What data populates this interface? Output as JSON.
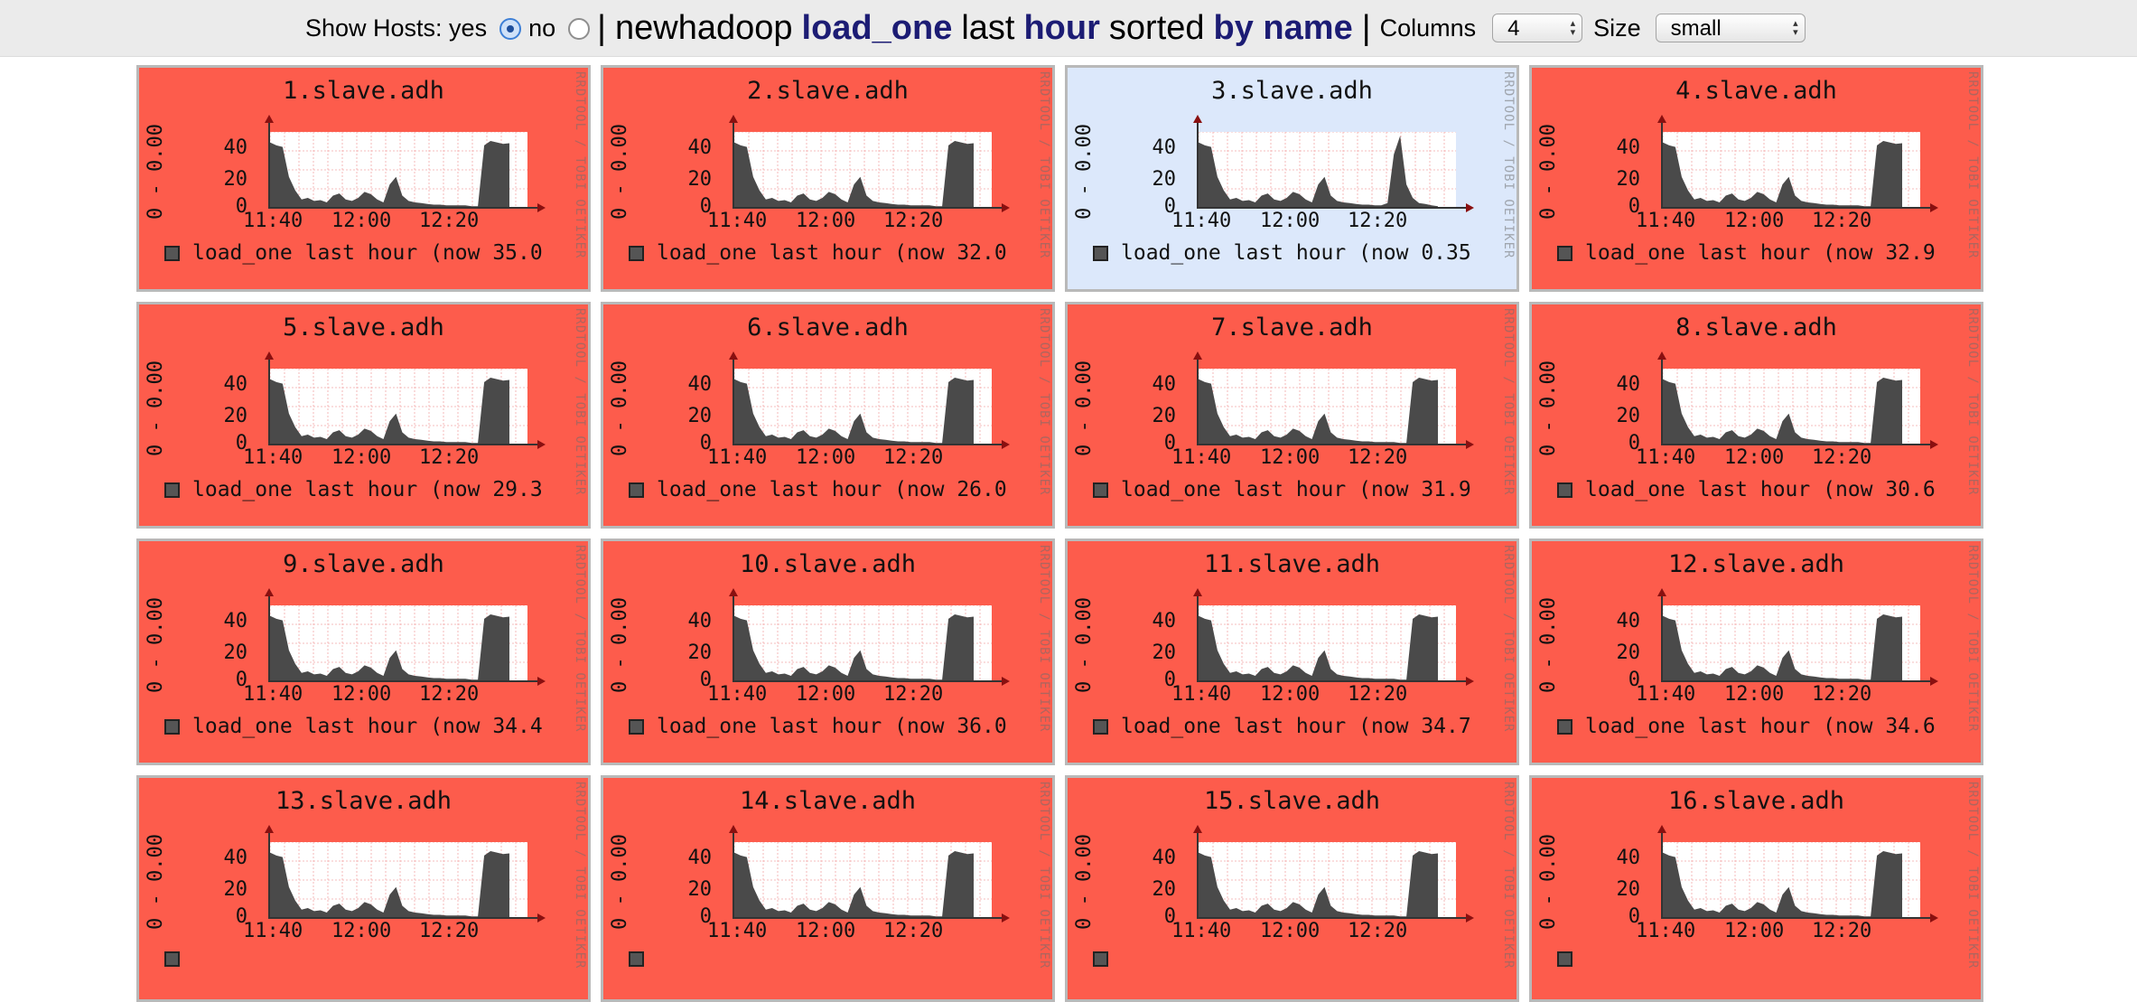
{
  "header": {
    "show_hosts_label": "Show Hosts: yes",
    "no_label": "no",
    "separator": "|",
    "cluster": "newhadoop",
    "metric": "load_one",
    "last_label": "last",
    "range": "hour",
    "sorted_label": "sorted",
    "sort_by": "by name",
    "separator2": "|",
    "columns_label": "Columns",
    "columns_value": "4",
    "size_label": "Size",
    "size_value": "small",
    "show_hosts_selected": "yes"
  },
  "graph_common": {
    "y_range_label": "0 - 0.00",
    "y_ticks": [
      "40",
      "20",
      "0"
    ],
    "x_ticks": [
      "11:40",
      "12:00",
      "12:20"
    ],
    "watermark": "RRDTOOL / TOBI OETIKER",
    "colors": {
      "alert_bg": "#fd5c4c",
      "ok_bg": "#dce8fb",
      "area": "#4a4a4a",
      "grid": "#f3a8a8"
    }
  },
  "hosts": [
    {
      "title": "1.slave.adh",
      "legend": "load_one last hour (now 35.0",
      "now": 35.0,
      "status": "alert"
    },
    {
      "title": "2.slave.adh",
      "legend": "load_one last hour (now 32.0",
      "now": 32.0,
      "status": "alert"
    },
    {
      "title": "3.slave.adh",
      "legend": "load_one last hour (now 0.35",
      "now": 0.35,
      "status": "ok"
    },
    {
      "title": "4.slave.adh",
      "legend": "load_one last hour (now 32.9",
      "now": 32.9,
      "status": "alert"
    },
    {
      "title": "5.slave.adh",
      "legend": "load_one last hour (now 29.3",
      "now": 29.3,
      "status": "alert"
    },
    {
      "title": "6.slave.adh",
      "legend": "load_one last hour (now 26.0",
      "now": 26.0,
      "status": "alert"
    },
    {
      "title": "7.slave.adh",
      "legend": "load_one last hour (now 31.9",
      "now": 31.9,
      "status": "alert"
    },
    {
      "title": "8.slave.adh",
      "legend": "load_one last hour (now 30.6",
      "now": 30.6,
      "status": "alert"
    },
    {
      "title": "9.slave.adh",
      "legend": "load_one last hour (now 34.4",
      "now": 34.4,
      "status": "alert"
    },
    {
      "title": "10.slave.adh",
      "legend": "load_one last hour (now 36.0",
      "now": 36.0,
      "status": "alert"
    },
    {
      "title": "11.slave.adh",
      "legend": "load_one last hour (now 34.7",
      "now": 34.7,
      "status": "alert"
    },
    {
      "title": "12.slave.adh",
      "legend": "load_one last hour (now 34.6",
      "now": 34.6,
      "status": "alert"
    },
    {
      "title": "13.slave.adh",
      "legend": "",
      "now": null,
      "status": "alert"
    },
    {
      "title": "14.slave.adh",
      "legend": "",
      "now": null,
      "status": "alert"
    },
    {
      "title": "15.slave.adh",
      "legend": "",
      "now": null,
      "status": "alert"
    },
    {
      "title": "16.slave.adh",
      "legend": "",
      "now": null,
      "status": "alert"
    }
  ]
}
